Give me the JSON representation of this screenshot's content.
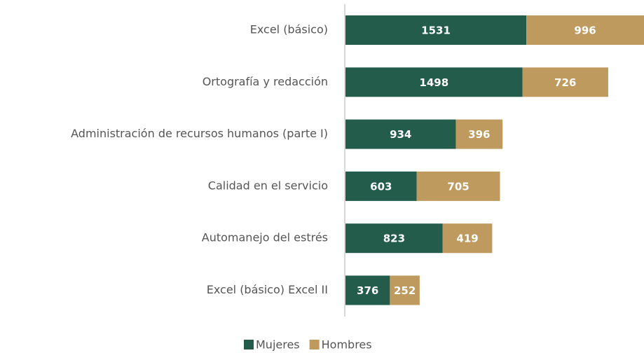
{
  "chart_data": {
    "type": "bar",
    "orientation": "horizontal",
    "stacked": true,
    "categories": [
      "Excel (básico)",
      "Ortografía y redacción",
      "Administración de recursos humanos (parte I)",
      "Calidad en el servicio",
      "Automanejo del estrés",
      "Excel (básico) Excel II"
    ],
    "series": [
      {
        "name": "Mujeres",
        "color": "#235c4b",
        "values": [
          1531,
          1498,
          934,
          603,
          823,
          376
        ]
      },
      {
        "name": "Hombres",
        "color": "#bf9a5e",
        "values": [
          996,
          726,
          396,
          705,
          419,
          252
        ]
      }
    ],
    "legend": "bottom"
  }
}
